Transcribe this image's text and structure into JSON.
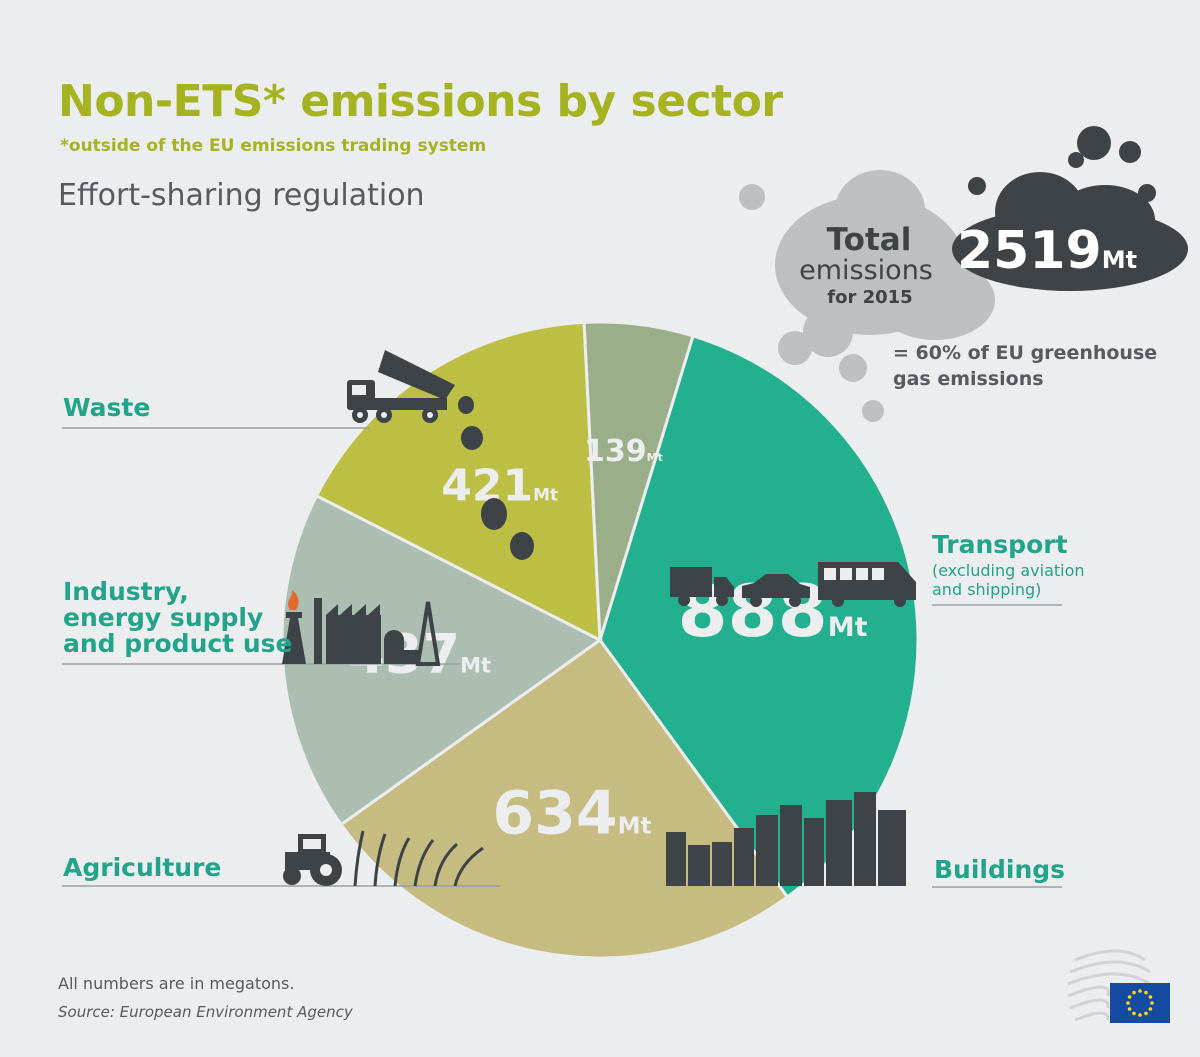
{
  "header": {
    "title": "Non-ETS* emissions by sector",
    "note": "*outside of the EU emissions trading system",
    "subtitle": "Effort-sharing regulation"
  },
  "total": {
    "label_line1": "Total",
    "label_line2": "emissions",
    "label_line3": "for 2015",
    "value": "2519",
    "unit": "Mt",
    "note": "= 60% of EU greenhouse gas emissions"
  },
  "footer": {
    "note": "All numbers are in megatons.",
    "source": "Source: European Environment Agency"
  },
  "labels": {
    "waste": "Waste",
    "industry_line1": "Industry,",
    "industry_line2": "energy supply",
    "industry_line3": "and product use",
    "agriculture": "Agriculture",
    "transport": "Transport",
    "transport_sub1": "(excluding aviation",
    "transport_sub2": "and shipping)",
    "buildings": "Buildings"
  },
  "chart_data": {
    "type": "pie",
    "unit": "Mt",
    "slices": [
      {
        "name": "Transport",
        "value": 888,
        "label": "888",
        "color": "#22b08f"
      },
      {
        "name": "Buildings",
        "value": 634,
        "label": "634",
        "color": "#c6bb80"
      },
      {
        "name": "Agriculture",
        "value": 437,
        "label": "437",
        "color": "#abbeb1"
      },
      {
        "name": "Industry, energy supply and product use",
        "value": 421,
        "label": "421",
        "color": "#bcbf43"
      },
      {
        "name": "Waste",
        "value": 139,
        "label": "139",
        "color": "#9aae8a"
      }
    ]
  },
  "colors": {
    "title": "#a4b31f",
    "sector_label": "#22a48a",
    "icon": "#3d4347",
    "cloud_light": "#bdbfc1",
    "cloud_dark": "#3d4347"
  },
  "icons": [
    "dump-truck-icon",
    "truck-icon",
    "car-icon",
    "bus-icon",
    "factory-icon",
    "tractor-icon",
    "wheat-icon",
    "city-buildings-icon",
    "eu-flag-icon"
  ]
}
